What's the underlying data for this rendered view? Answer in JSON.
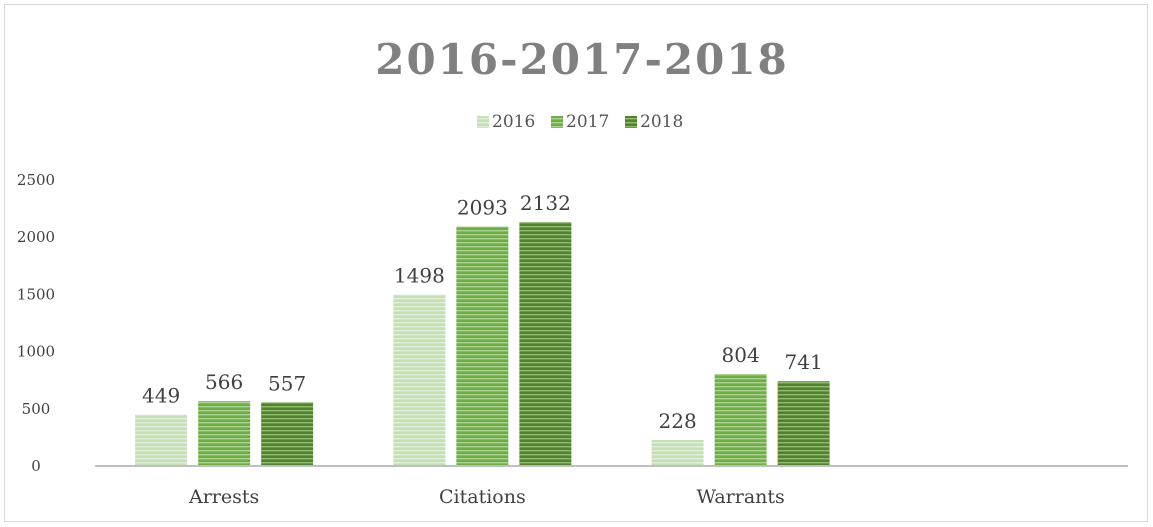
{
  "chart_data": {
    "type": "bar",
    "title": "2016-2017-2018",
    "xlabel": "",
    "ylabel": "",
    "categories": [
      "Arrests",
      "Citations",
      "Warrants",
      ""
    ],
    "series": [
      {
        "name": "2016",
        "values": [
          449,
          1498,
          228,
          null
        ]
      },
      {
        "name": "2017",
        "values": [
          566,
          2093,
          804,
          null
        ]
      },
      {
        "name": "2018",
        "values": [
          557,
          2132,
          741,
          null
        ]
      }
    ],
    "ylim": [
      0,
      2500
    ],
    "yticks": [
      0,
      500,
      1000,
      1500,
      2000,
      2500
    ],
    "ytick_labels": [
      "0",
      "500",
      "1000",
      "1500",
      "2000",
      "2500"
    ],
    "grid": false,
    "legend_position": "top",
    "colors": {
      "2016": "#c5dfb4",
      "2017": "#70ad47",
      "2018": "#548235"
    },
    "stripe_colors": {
      "2016": "#e2efda",
      "2017": "#a9d18e",
      "2018": "#8fbc6c"
    }
  }
}
